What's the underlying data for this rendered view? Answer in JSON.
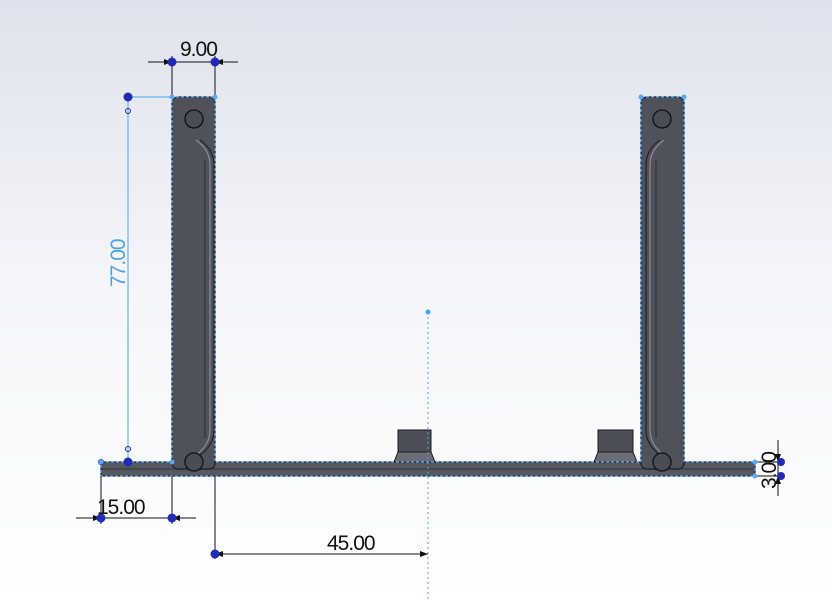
{
  "colors": {
    "selected_dimension": "#4aa3ea",
    "dimension": "#111111",
    "handle": "#1f2ab5",
    "part_fill": "#52555e",
    "part_edge": "#1a1b20",
    "highlight": "#5aa8f0"
  },
  "dimensions": {
    "arm_width": "9.00",
    "arm_height": "77.00",
    "left_overhang": "15.00",
    "center_offset": "45.00",
    "plate_thickness": "3.00"
  }
}
